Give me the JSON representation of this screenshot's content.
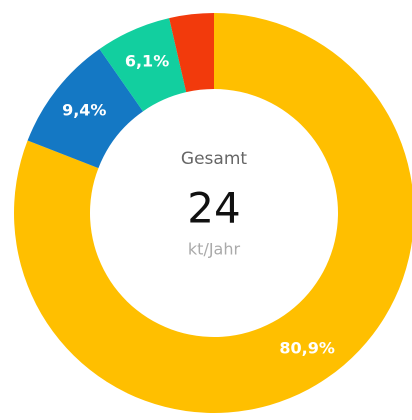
{
  "chart_data": {
    "type": "donut",
    "values": [
      80.9,
      9.4,
      6.1,
      3.6
    ],
    "value_labels": [
      "80,9%",
      "9,4%",
      "6,1%",
      null
    ],
    "colors": [
      "#ffbf00",
      "#1478c4",
      "#12cf9f",
      "#f23a0c"
    ],
    "center_title": "Gesamt",
    "center_value": 24,
    "center_unit": "kt/Jahr"
  }
}
